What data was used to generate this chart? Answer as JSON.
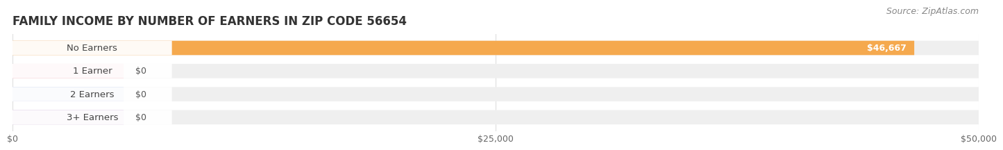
{
  "title": "FAMILY INCOME BY NUMBER OF EARNERS IN ZIP CODE 56654",
  "source": "Source: ZipAtlas.com",
  "categories": [
    "No Earners",
    "1 Earner",
    "2 Earners",
    "3+ Earners"
  ],
  "values": [
    46667,
    0,
    0,
    0
  ],
  "bar_colors": [
    "#F5A94E",
    "#F0A0A8",
    "#A8B8E8",
    "#C8A8D8"
  ],
  "value_labels": [
    "$46,667",
    "$0",
    "$0",
    "$0"
  ],
  "xlim": [
    0,
    50000
  ],
  "xticks": [
    0,
    25000,
    50000
  ],
  "xticklabels": [
    "$0",
    "$25,000",
    "$50,000"
  ],
  "background_color": "#ffffff",
  "bar_bg_color": "#efefef",
  "title_fontsize": 12,
  "source_fontsize": 9,
  "label_box_color": "#ffffff",
  "label_text_color": "#444444",
  "value_text_color_inside": "#ffffff",
  "value_text_color_outside": "#555555"
}
